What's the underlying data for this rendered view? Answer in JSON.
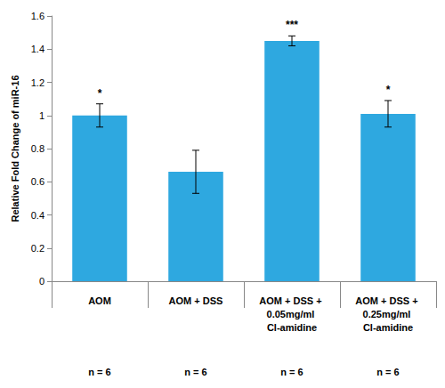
{
  "chart_data": {
    "type": "bar",
    "y_label": "Relative Fold Change of miR-16",
    "categories": [
      "AOM",
      "AOM + DSS",
      "AOM + DSS + 0.05mg/ml Cl-amidine",
      "AOM + DSS + 0.25mg/ml Cl-amidine"
    ],
    "values": [
      1.0,
      0.66,
      1.45,
      1.01
    ],
    "errors": [
      0.07,
      0.13,
      0.03,
      0.08
    ],
    "significance": [
      "*",
      null,
      "***",
      "*"
    ],
    "n_labels": [
      "n = 6",
      "n = 6",
      "n = 6",
      "n = 6"
    ],
    "color": "#2ea8e0",
    "ylim": [
      0,
      1.6
    ],
    "yticks": [
      0,
      0.2,
      0.4,
      0.6,
      0.8,
      1,
      1.2,
      1.4,
      1.6
    ],
    "grid": false
  }
}
